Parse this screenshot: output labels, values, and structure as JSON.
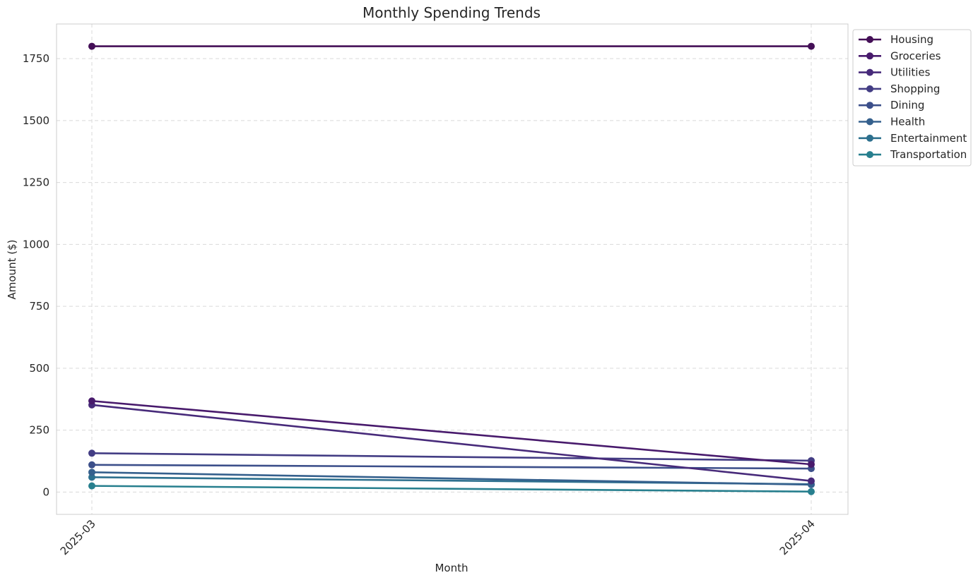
{
  "chart_data": {
    "type": "line",
    "title": "Monthly Spending Trends",
    "xlabel": "Month",
    "ylabel": "Amount ($)",
    "categories": [
      "2025-03",
      "2025-04"
    ],
    "ylim": [
      -90,
      1890
    ],
    "yticks": [
      0,
      250,
      500,
      750,
      1000,
      1250,
      1500,
      1750
    ],
    "grid": true,
    "legend_position": "outside-top-right",
    "series": [
      {
        "name": "Housing",
        "color": "#440f57",
        "values": [
          1800,
          1800
        ]
      },
      {
        "name": "Groceries",
        "color": "#481a6c",
        "values": [
          368,
          112
        ]
      },
      {
        "name": "Utilities",
        "color": "#472a7a",
        "values": [
          352,
          45
        ]
      },
      {
        "name": "Shopping",
        "color": "#433d84",
        "values": [
          157,
          127
        ]
      },
      {
        "name": "Dining",
        "color": "#3c4f8a",
        "values": [
          110,
          95
        ]
      },
      {
        "name": "Health",
        "color": "#35608d",
        "values": [
          80,
          30
        ]
      },
      {
        "name": "Entertainment",
        "color": "#2d708e",
        "values": [
          60,
          32
        ]
      },
      {
        "name": "Transportation",
        "color": "#277f8e",
        "values": [
          25,
          2
        ]
      }
    ]
  }
}
